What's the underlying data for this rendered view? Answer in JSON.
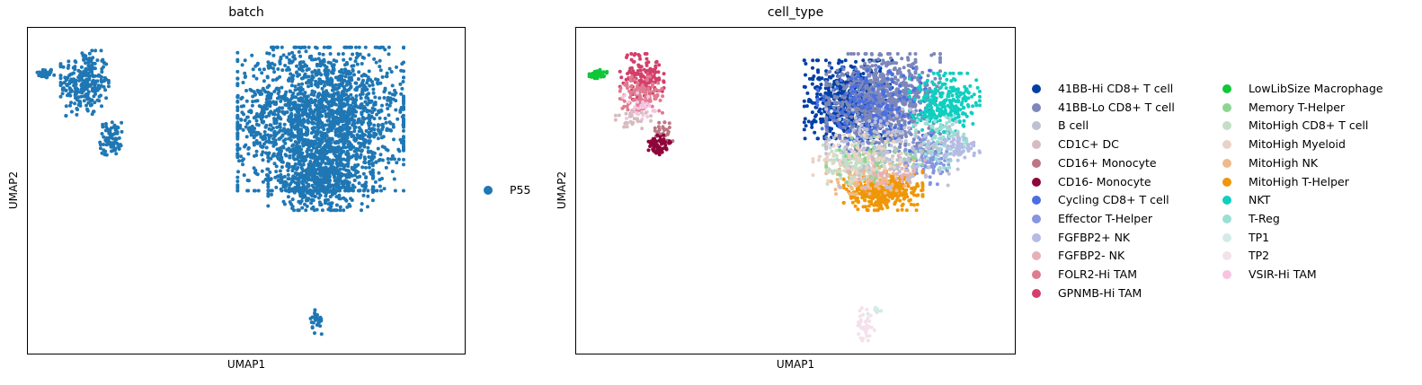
{
  "panels": [
    {
      "title": "batch",
      "xlabel": "UMAP1",
      "ylabel": "UMAP2",
      "legend": [
        {
          "label": "P55",
          "color": "#1f77b4"
        }
      ]
    },
    {
      "title": "cell_type",
      "xlabel": "UMAP1",
      "ylabel": "UMAP2",
      "legend_columns": [
        [
          {
            "label": "41BB-Hi CD8+ T cell",
            "color": "#023fa5"
          },
          {
            "label": "41BB-Lo CD8+ T cell",
            "color": "#7d87b9"
          },
          {
            "label": "B cell",
            "color": "#bec1d4"
          },
          {
            "label": "CD1C+ DC",
            "color": "#d6bcc0"
          },
          {
            "label": "CD16+ Monocyte",
            "color": "#bb7784"
          },
          {
            "label": "CD16- Monocyte",
            "color": "#8e063b"
          },
          {
            "label": "Cycling CD8+ T cell",
            "color": "#4a6fe3"
          },
          {
            "label": "Effector T-Helper",
            "color": "#8595e1"
          },
          {
            "label": "FGFBP2+ NK",
            "color": "#b5bbe3"
          },
          {
            "label": "FGFBP2- NK",
            "color": "#e6afb9"
          },
          {
            "label": "FOLR2-Hi TAM",
            "color": "#e07b91"
          },
          {
            "label": "GPNMB-Hi TAM",
            "color": "#d33f6a"
          }
        ],
        [
          {
            "label": "LowLibSize Macrophage",
            "color": "#11c638"
          },
          {
            "label": "Memory T-Helper",
            "color": "#8dd593"
          },
          {
            "label": "MitoHigh CD8+ T cell",
            "color": "#c6dec7"
          },
          {
            "label": "MitoHigh Myeloid",
            "color": "#ead3c6"
          },
          {
            "label": "MitoHigh NK",
            "color": "#f0b98d"
          },
          {
            "label": "MitoHigh T-Helper",
            "color": "#ef9708"
          },
          {
            "label": "NKT",
            "color": "#0fcfc0"
          },
          {
            "label": "T-Reg",
            "color": "#9cded6"
          },
          {
            "label": "TP1",
            "color": "#d5eae7"
          },
          {
            "label": "TP2",
            "color": "#f3e1eb"
          },
          {
            "label": "VSIR-Hi TAM",
            "color": "#f6c4e1"
          }
        ]
      ]
    }
  ],
  "chart_data": [
    {
      "type": "scatter",
      "title": "batch",
      "xlabel": "UMAP1",
      "ylabel": "UMAP2",
      "grid": false,
      "axis_ticks": false,
      "legend_position": "right",
      "series": [
        {
          "name": "P55",
          "color": "#1f77b4",
          "clusters": [
            {
              "cx": 0.04,
              "cy": 0.86,
              "rx": 0.02,
              "ry": 0.015,
              "n": 40
            },
            {
              "cx": 0.13,
              "cy": 0.83,
              "rx": 0.055,
              "ry": 0.1,
              "n": 260
            },
            {
              "cx": 0.19,
              "cy": 0.66,
              "rx": 0.025,
              "ry": 0.05,
              "n": 80
            },
            {
              "cx": 0.67,
              "cy": 0.72,
              "rx": 0.19,
              "ry": 0.22,
              "n": 2000
            },
            {
              "cx": 0.67,
              "cy": 0.53,
              "rx": 0.12,
              "ry": 0.09,
              "n": 500
            },
            {
              "cx": 0.66,
              "cy": 0.1,
              "rx": 0.015,
              "ry": 0.04,
              "n": 30
            }
          ]
        }
      ]
    },
    {
      "type": "scatter",
      "title": "cell_type",
      "xlabel": "UMAP1",
      "ylabel": "UMAP2",
      "grid": false,
      "axis_ticks": false,
      "legend_position": "right",
      "clusters": [
        {
          "name": "LowLibSize Macrophage",
          "color": "#11c638",
          "cx": 0.05,
          "cy": 0.86,
          "rx": 0.02,
          "ry": 0.015,
          "n": 40
        },
        {
          "name": "GPNMB-Hi TAM",
          "color": "#d33f6a",
          "cx": 0.15,
          "cy": 0.85,
          "rx": 0.05,
          "ry": 0.07,
          "n": 140
        },
        {
          "name": "FOLR2-Hi TAM",
          "color": "#e07b91",
          "cx": 0.15,
          "cy": 0.79,
          "rx": 0.05,
          "ry": 0.06,
          "n": 120
        },
        {
          "name": "VSIR-Hi TAM",
          "color": "#f6c4e1",
          "cx": 0.14,
          "cy": 0.76,
          "rx": 0.04,
          "ry": 0.04,
          "n": 30
        },
        {
          "name": "CD16+ Monocyte",
          "color": "#bb7784",
          "cx": 0.2,
          "cy": 0.68,
          "rx": 0.02,
          "ry": 0.03,
          "n": 30
        },
        {
          "name": "CD16- Monocyte",
          "color": "#8e063b",
          "cx": 0.19,
          "cy": 0.64,
          "rx": 0.025,
          "ry": 0.03,
          "n": 60
        },
        {
          "name": "CD1C+ DC",
          "color": "#d6bcc0",
          "cx": 0.13,
          "cy": 0.72,
          "rx": 0.04,
          "ry": 0.03,
          "n": 30
        },
        {
          "name": "41BB-Hi CD8+ T cell",
          "color": "#023fa5",
          "cx": 0.62,
          "cy": 0.78,
          "rx": 0.1,
          "ry": 0.12,
          "n": 550
        },
        {
          "name": "41BB-Lo CD8+ T cell",
          "color": "#7d87b9",
          "cx": 0.7,
          "cy": 0.77,
          "rx": 0.13,
          "ry": 0.15,
          "n": 900
        },
        {
          "name": "Cycling CD8+ T cell",
          "color": "#4a6fe3",
          "cx": 0.68,
          "cy": 0.75,
          "rx": 0.13,
          "ry": 0.13,
          "n": 200
        },
        {
          "name": "Effector T-Helper",
          "color": "#8595e1",
          "cx": 0.8,
          "cy": 0.6,
          "rx": 0.05,
          "ry": 0.08,
          "n": 120
        },
        {
          "name": "NKT",
          "color": "#0fcfc0",
          "cx": 0.84,
          "cy": 0.77,
          "rx": 0.08,
          "ry": 0.09,
          "n": 260
        },
        {
          "name": "T-Reg",
          "color": "#9cded6",
          "cx": 0.83,
          "cy": 0.65,
          "rx": 0.06,
          "ry": 0.08,
          "n": 90
        },
        {
          "name": "MitoHigh T-Helper",
          "color": "#ef9708",
          "cx": 0.7,
          "cy": 0.5,
          "rx": 0.09,
          "ry": 0.06,
          "n": 350
        },
        {
          "name": "MitoHigh NK",
          "color": "#f0b98d",
          "cx": 0.67,
          "cy": 0.55,
          "rx": 0.1,
          "ry": 0.06,
          "n": 120
        },
        {
          "name": "MitoHigh CD8+ T cell",
          "color": "#c6dec7",
          "cx": 0.63,
          "cy": 0.58,
          "rx": 0.08,
          "ry": 0.06,
          "n": 120
        },
        {
          "name": "Memory T-Helper",
          "color": "#8dd593",
          "cx": 0.68,
          "cy": 0.6,
          "rx": 0.11,
          "ry": 0.08,
          "n": 60
        },
        {
          "name": "B cell",
          "color": "#bec1d4",
          "cx": 0.72,
          "cy": 0.63,
          "rx": 0.15,
          "ry": 0.12,
          "n": 200
        },
        {
          "name": "FGFBP2+ NK",
          "color": "#b5bbe3",
          "cx": 0.88,
          "cy": 0.63,
          "rx": 0.04,
          "ry": 0.04,
          "n": 60
        },
        {
          "name": "MitoHigh Myeloid",
          "color": "#ead3c6",
          "cx": 0.64,
          "cy": 0.6,
          "rx": 0.1,
          "ry": 0.07,
          "n": 80
        },
        {
          "name": "TP2",
          "color": "#f3e1eb",
          "cx": 0.66,
          "cy": 0.09,
          "rx": 0.02,
          "ry": 0.05,
          "n": 40
        },
        {
          "name": "TP1",
          "color": "#d5eae7",
          "cx": 0.68,
          "cy": 0.13,
          "rx": 0.015,
          "ry": 0.015,
          "n": 8
        },
        {
          "name": "FGFBP2- NK",
          "color": "#e6afb9",
          "cx": 0.72,
          "cy": 0.55,
          "rx": 0.1,
          "ry": 0.06,
          "n": 25
        }
      ]
    }
  ]
}
